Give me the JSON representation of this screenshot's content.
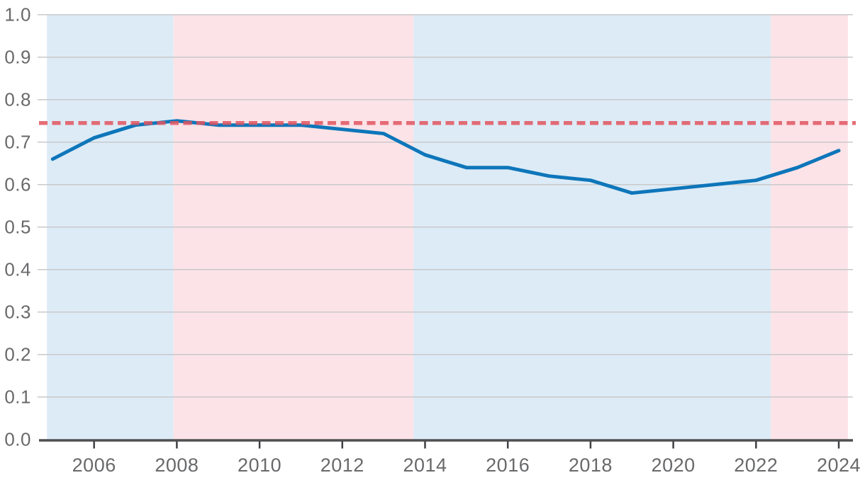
{
  "chart_data": {
    "type": "line",
    "title": "",
    "xlabel": "",
    "ylabel": "",
    "x": [
      2005,
      2006,
      2007,
      2008,
      2009,
      2010,
      2011,
      2012,
      2013,
      2014,
      2015,
      2016,
      2017,
      2018,
      2019,
      2020,
      2021,
      2022,
      2023,
      2024
    ],
    "series": [
      {
        "name": "main-line",
        "color": "#0e76ba",
        "values": [
          0.66,
          0.71,
          0.74,
          0.75,
          0.74,
          0.74,
          0.74,
          0.73,
          0.72,
          0.67,
          0.64,
          0.64,
          0.62,
          0.61,
          0.58,
          0.59,
          0.6,
          0.61,
          0.64,
          0.68
        ]
      }
    ],
    "reference_line": {
      "value": 0.745,
      "style": "dashed",
      "color": "#e25560",
      "opacity": 0.85
    },
    "bands": [
      {
        "from": 2004.86,
        "to": 2007.92,
        "color": "#ddebf6"
      },
      {
        "from": 2007.92,
        "to": 2013.72,
        "color": "#fce3e7"
      },
      {
        "from": 2013.72,
        "to": 2022.36,
        "color": "#ddebf6"
      },
      {
        "from": 2022.36,
        "to": 2024.22,
        "color": "#fce3e7"
      }
    ],
    "xlim": [
      2004.86,
      2024.22
    ],
    "ylim": [
      0.0,
      1.0
    ],
    "x_ticks": [
      2006,
      2008,
      2010,
      2012,
      2014,
      2016,
      2018,
      2020,
      2022,
      2024
    ],
    "x_tick_labels": [
      "2006",
      "2008",
      "2010",
      "2012",
      "2014",
      "2016",
      "2018",
      "2020",
      "2022",
      "2024"
    ],
    "y_ticks": [
      0.0,
      0.1,
      0.2,
      0.3,
      0.4,
      0.5,
      0.6,
      0.7,
      0.8,
      0.9,
      1.0
    ],
    "y_tick_labels": [
      "0.0",
      "0.1",
      "0.2",
      "0.3",
      "0.4",
      "0.5",
      "0.6",
      "0.7",
      "0.8",
      "0.9",
      "1.0"
    ],
    "grid": true,
    "legend": "none",
    "colors": {
      "grid_line": "#c8c9cb",
      "axis_line": "#4e4f51",
      "tick_mark": "#3f4042",
      "tick_label": "#68696b",
      "background": "#ffffff"
    }
  }
}
